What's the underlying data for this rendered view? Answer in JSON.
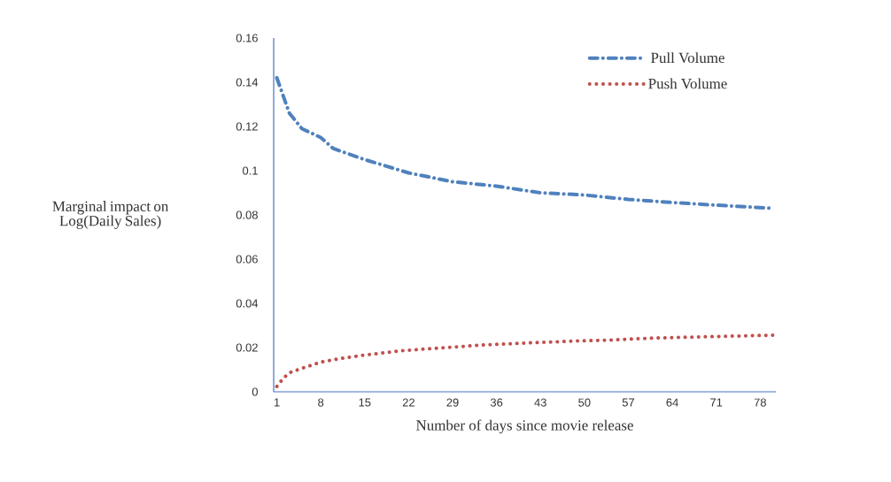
{
  "chart_data": {
    "type": "line",
    "xlabel": "Number of days since movie release",
    "ylabel": "Marginal impact on Log(Daily Sales)",
    "xlim": [
      0.5,
      80.5
    ],
    "xticks": [
      1,
      8,
      15,
      22,
      29,
      36,
      43,
      50,
      57,
      64,
      71,
      78
    ],
    "ylim": [
      0,
      0.16
    ],
    "yticks": [
      0,
      0.02,
      0.04,
      0.06,
      0.08,
      0.1,
      0.12,
      0.14,
      0.16
    ],
    "grid": false,
    "legend": "top right",
    "series": [
      {
        "name": "Pull Volume",
        "color": "#4f81bd",
        "line_style": "dashdot",
        "x": [
          1,
          3,
          5,
          8,
          10,
          15,
          22,
          29,
          36,
          43,
          50,
          57,
          64,
          71,
          80
        ],
        "values": [
          0.142,
          0.126,
          0.119,
          0.115,
          0.11,
          0.105,
          0.099,
          0.095,
          0.093,
          0.09,
          0.089,
          0.087,
          0.0856,
          0.0844,
          0.083
        ]
      },
      {
        "name": "Push Volume",
        "color": "#c0504d",
        "line_style": "dotted",
        "x": [
          1,
          2,
          3,
          5,
          8,
          11,
          15,
          21,
          28,
          34,
          41,
          48,
          54,
          61,
          68,
          74,
          80
        ],
        "values": [
          0.0024,
          0.006,
          0.0086,
          0.0106,
          0.0134,
          0.015,
          0.0166,
          0.0186,
          0.02,
          0.0212,
          0.0221,
          0.0229,
          0.0234,
          0.0243,
          0.0248,
          0.0252,
          0.0256
        ]
      }
    ]
  }
}
